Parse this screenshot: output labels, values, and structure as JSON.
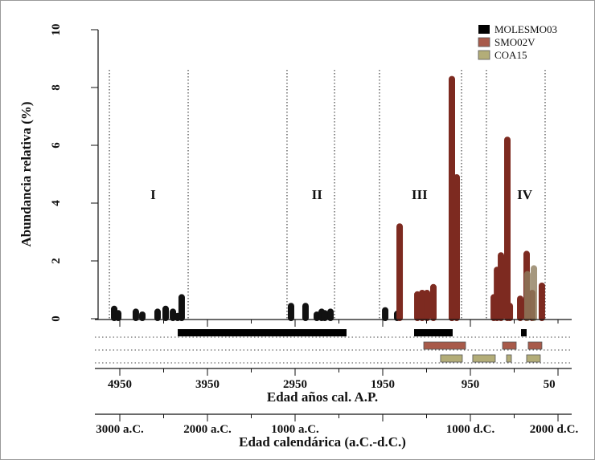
{
  "chart_data": {
    "type": "bar",
    "ylabel": "Abundancia relativa (%)",
    "ylim": [
      0,
      10
    ],
    "yticks": [
      0,
      2,
      4,
      6,
      8,
      10
    ],
    "xlabel": "Edad años cal. A.P.",
    "x_reversed": true,
    "xticks": [
      4950,
      3950,
      2950,
      1950,
      950,
      50
    ],
    "xtick_labels": [
      "4950",
      "3950",
      "2950",
      "1950",
      "950",
      "50"
    ],
    "xlabel2": "Edad calendárica (a.C.-d.C.)",
    "xticks2_bp": [
      4950,
      3950,
      2950,
      1950,
      950,
      -50
    ],
    "xtick_labels2": [
      "3000 a.C.",
      "2000 a.C.",
      "1000 a.C.",
      "",
      "1000 d.C.",
      "2000 d.C."
    ],
    "legend_position": "top-right",
    "zone_boundaries_bp": [
      5069,
      4170,
      3042,
      2500,
      1987,
      1051,
      767,
      97
    ],
    "zones": [
      {
        "label": "I",
        "age": 4570
      },
      {
        "label": "II",
        "age": 2700
      },
      {
        "label": "III",
        "age": 1530
      },
      {
        "label": "IV",
        "age": 330
      }
    ],
    "series": [
      {
        "name": "MOLESMO03",
        "color": "#111111",
        "points": [
          [
            5014,
            0.45
          ],
          [
            4968,
            0.3
          ],
          [
            4767,
            0.35
          ],
          [
            4693,
            0.25
          ],
          [
            4519,
            0.35
          ],
          [
            4427,
            0.45
          ],
          [
            4344,
            0.35
          ],
          [
            4290,
            0.2
          ],
          [
            4244,
            0.85
          ],
          [
            2996,
            0.55
          ],
          [
            2831,
            0.55
          ],
          [
            2702,
            0.25
          ],
          [
            2647,
            0.35
          ],
          [
            2611,
            0.3
          ],
          [
            2546,
            0.35
          ],
          [
            1922,
            0.4
          ],
          [
            1785,
            0.28
          ]
        ],
        "ranges": [
          [
            4289,
            2363
          ],
          [
            1592,
            1152
          ],
          [
            372,
            308
          ]
        ],
        "range_color": "#000000"
      },
      {
        "name": "SMO02V",
        "color": "#7d2a20",
        "points": [
          [
            1757,
            3.3
          ],
          [
            1555,
            0.95
          ],
          [
            1500,
            1.0
          ],
          [
            1445,
            1.0
          ],
          [
            1372,
            1.2
          ],
          [
            1161,
            3.2
          ],
          [
            1161,
            8.4
          ],
          [
            1106,
            5.0
          ],
          [
            683,
            0.85
          ],
          [
            646,
            1.8
          ],
          [
            601,
            2.3
          ],
          [
            528,
            6.3
          ],
          [
            500,
            0.55
          ],
          [
            381,
            0.8
          ],
          [
            308,
            2.35
          ],
          [
            244,
            1.0
          ],
          [
            134,
            1.25
          ]
        ],
        "ranges": [
          [
            1482,
            1005
          ],
          [
            583,
            427
          ],
          [
            290,
            134
          ]
        ],
        "range_color": "#a85a4a"
      },
      {
        "name": "COA15",
        "color": "#8f7d5e",
        "points": [
          [
            299,
            1.65
          ],
          [
            225,
            1.85
          ]
        ],
        "ranges": [
          [
            1290,
            1042
          ],
          [
            923,
            666
          ],
          [
            537,
            482
          ],
          [
            308,
            152
          ]
        ],
        "range_color": "#b3ad78"
      }
    ]
  }
}
